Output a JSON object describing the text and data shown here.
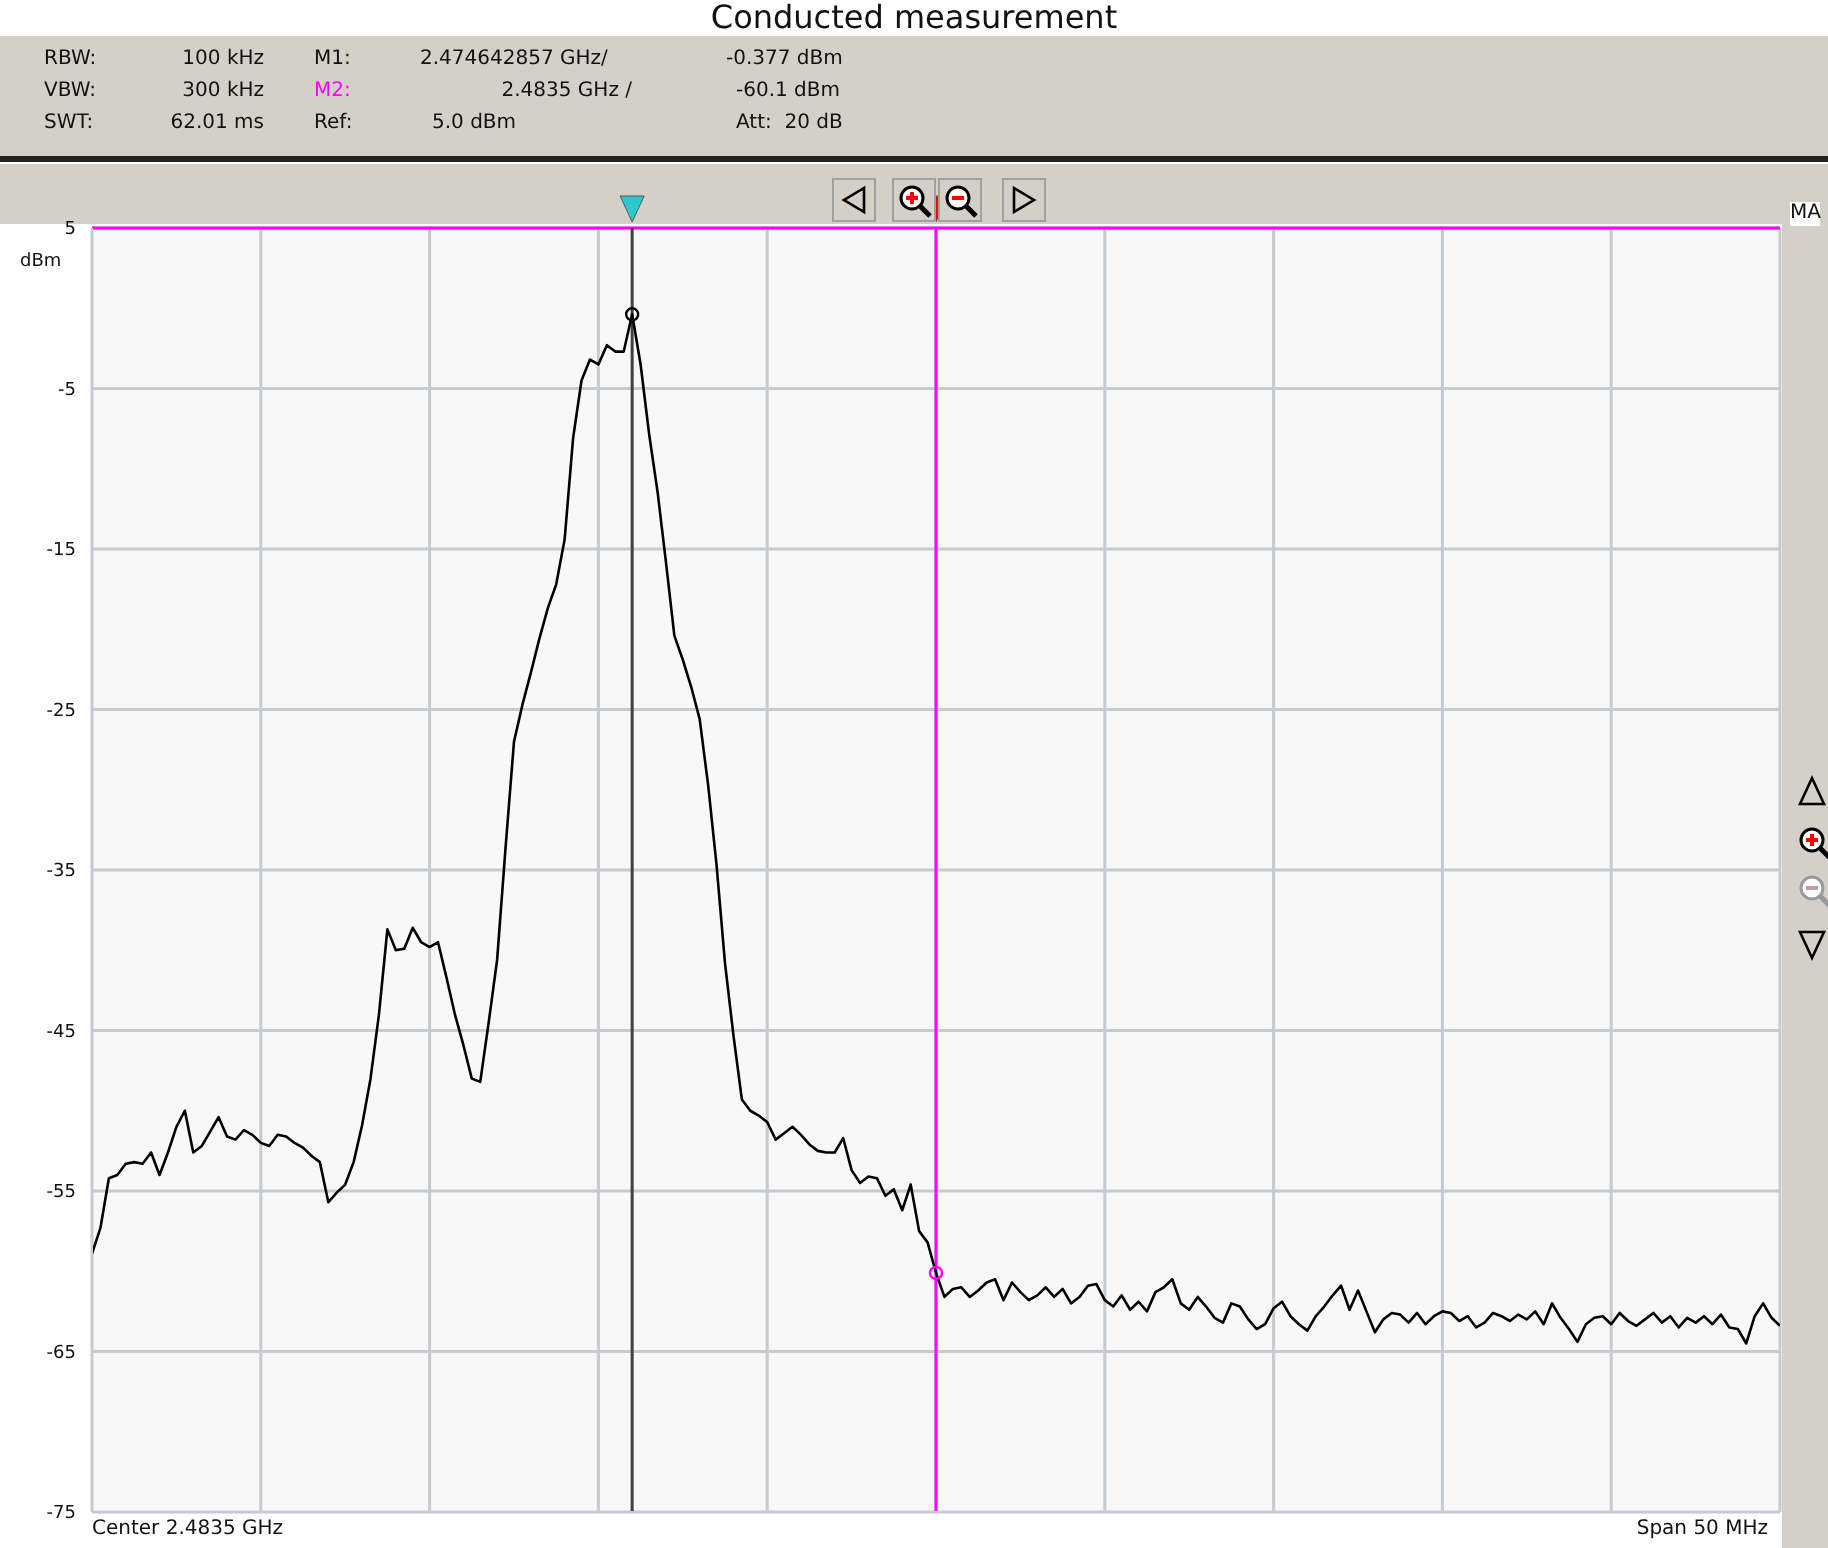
{
  "chart_data": {
    "type": "line",
    "title": "Conducted measurement",
    "ylabel": "dBm",
    "annotations": [
      "RBW:",
      "100 kHz",
      "M1:",
      "2.474642857 GHz/",
      "-0.377 dBm",
      "VBW:",
      "300 kHz",
      "M2:",
      "2.4835 GHz /",
      "-60.1 dBm",
      "SWT:",
      "62.01 ms",
      "Ref:",
      "5.0 dBm",
      "Att:  20 dB",
      "Center 2.4835 GHz",
      "Span 50 MHz",
      "MA"
    ],
    "categories": [
      null,
      null,
      null,
      null,
      null,
      null,
      null,
      null,
      null,
      null,
      null,
      null,
      null,
      null,
      null,
      null,
      null,
      null,
      null,
      null,
      null,
      null,
      null,
      null,
      null,
      null,
      null,
      null,
      null,
      null,
      null,
      null,
      null,
      null,
      null,
      null,
      null,
      null,
      null,
      null,
      null,
      null,
      null,
      null,
      null,
      null,
      null,
      null,
      null,
      null,
      null,
      null,
      null,
      null,
      null,
      null,
      null,
      null,
      null,
      null,
      null,
      null,
      null,
      null,
      null,
      null,
      null,
      null,
      null,
      null,
      null,
      null,
      null,
      null,
      null,
      null,
      null,
      null,
      null,
      null,
      null,
      null,
      null,
      null,
      null,
      null,
      null,
      null,
      null,
      null,
      null,
      null,
      null,
      null,
      null,
      null,
      null,
      null,
      null,
      null,
      null,
      null,
      null,
      null,
      null,
      null,
      null,
      null,
      null,
      null,
      null,
      null,
      null,
      null,
      null,
      null,
      null,
      null,
      null,
      null,
      null,
      null,
      null,
      null,
      null,
      null,
      null,
      null,
      null,
      null,
      null,
      null,
      null,
      null,
      null,
      null,
      null,
      null,
      null,
      null,
      null,
      null,
      null,
      null,
      null,
      null,
      null,
      null,
      null,
      null,
      null,
      null,
      null,
      null,
      null,
      null,
      null,
      null,
      null,
      null,
      null,
      null,
      null,
      null,
      null,
      null,
      null,
      null,
      null,
      null,
      null,
      null,
      null,
      null,
      null,
      null,
      null,
      null,
      null,
      null,
      null,
      null,
      null,
      null,
      null,
      null,
      null,
      null,
      null,
      null,
      null,
      null,
      null,
      null,
      null,
      null,
      null,
      null,
      null,
      null,
      null
    ],
    "series": [
      {
        "color": "#000000",
        "values": [
          -58.9,
          -57.3,
          -54.2,
          -54.0,
          -53.3,
          -53.2,
          -53.3,
          -52.6,
          -54.0,
          -52.6,
          -51.0,
          -50.0,
          -52.6,
          -52.2,
          -51.3,
          -50.4,
          -51.6,
          -51.8,
          -51.2,
          -51.5,
          -52.0,
          -52.2,
          -51.5,
          -51.6,
          -52.0,
          -52.3,
          -52.8,
          -53.2,
          -55.7,
          -55.1,
          -54.6,
          -53.2,
          -50.9,
          -48.0,
          -44.0,
          -38.7,
          -40.0,
          -39.9,
          -38.6,
          -39.5,
          -39.8,
          -39.5,
          -41.7,
          -44.0,
          -45.9,
          -48.0,
          -48.2,
          -44.5,
          -40.6,
          -33.6,
          -27.0,
          -24.7,
          -22.7,
          -20.6,
          -18.7,
          -17.2,
          -14.4,
          -8.1,
          -4.5,
          -3.2,
          -3.5,
          -2.3,
          -2.7,
          -2.7,
          -0.377,
          -3.5,
          -7.8,
          -11.4,
          -15.8,
          -20.4,
          -21.9,
          -23.6,
          -25.6,
          -29.7,
          -34.7,
          -40.8,
          -45.3,
          -49.3,
          -50.0,
          -50.3,
          -50.7,
          -51.8,
          -51.4,
          -51.0,
          -51.5,
          -52.1,
          -52.5,
          -52.6,
          -52.6,
          -51.7,
          -53.7,
          -54.5,
          -54.1,
          -54.2,
          -55.3,
          -54.9,
          -56.2,
          -54.6,
          -57.5,
          -58.2,
          -60.1,
          -61.6,
          -61.1,
          -61.0,
          -61.6,
          -61.2,
          -60.7,
          -60.5,
          -61.8,
          -60.7,
          -61.3,
          -61.8,
          -61.5,
          -61.0,
          -61.6,
          -61.1,
          -62.0,
          -61.6,
          -60.9,
          -60.8,
          -61.8,
          -62.2,
          -61.5,
          -62.4,
          -61.9,
          -62.5,
          -61.3,
          -61.0,
          -60.5,
          -62.0,
          -62.4,
          -61.6,
          -62.2,
          -62.9,
          -63.2,
          -62.0,
          -62.2,
          -63.0,
          -63.6,
          -63.3,
          -62.3,
          -61.9,
          -62.8,
          -63.3,
          -63.7,
          -62.8,
          -62.2,
          -61.5,
          -60.9,
          -62.4,
          -61.2,
          -62.5,
          -63.8,
          -63.0,
          -62.6,
          -62.7,
          -63.2,
          -62.6,
          -63.3,
          -62.8,
          -62.5,
          -62.6,
          -63.1,
          -62.8,
          -63.5,
          -63.2,
          -62.6,
          -62.8,
          -63.1,
          -62.7,
          -63.0,
          -62.5,
          -63.3,
          -62.0,
          -62.9,
          -63.6,
          -64.4,
          -63.3,
          -62.9,
          -62.8,
          -63.3,
          -62.6,
          -63.1,
          -63.4,
          -63.0,
          -62.6,
          -63.2,
          -62.8,
          -63.5,
          -62.9,
          -63.2,
          -62.8,
          -63.3,
          -62.7,
          -63.5,
          -63.6,
          -64.5,
          -62.8,
          -62.0,
          -62.9,
          -63.4
        ]
      },
      {
        "type": "scatter",
        "marker": "circle",
        "color": "#000000",
        "values": [
          null,
          null,
          null,
          null,
          null,
          null,
          null,
          null,
          null,
          null,
          null,
          null,
          null,
          null,
          null,
          null,
          null,
          null,
          null,
          null,
          null,
          null,
          null,
          null,
          null,
          null,
          null,
          null,
          null,
          null,
          null,
          null,
          null,
          null,
          null,
          null,
          null,
          null,
          null,
          null,
          null,
          null,
          null,
          null,
          null,
          null,
          null,
          null,
          null,
          null,
          null,
          null,
          null,
          null,
          null,
          null,
          null,
          null,
          null,
          null,
          null,
          null,
          null,
          null,
          -0.377,
          null,
          null,
          null,
          null,
          null,
          null,
          null,
          null,
          null,
          null,
          null,
          null,
          null,
          null,
          null,
          null,
          null,
          null,
          null,
          null,
          null,
          null,
          null,
          null,
          null,
          null,
          null,
          null,
          null,
          null,
          null,
          null,
          null,
          null,
          null,
          null,
          null,
          null,
          null,
          null,
          null,
          null,
          null,
          null,
          null,
          null,
          null,
          null,
          null,
          null,
          null,
          null,
          null,
          null,
          null,
          null,
          null,
          null,
          null,
          null,
          null,
          null,
          null,
          null,
          null,
          null,
          null,
          null,
          null,
          null,
          null,
          null,
          null,
          null,
          null,
          null,
          null,
          null,
          null,
          null,
          null,
          null,
          null,
          null,
          null,
          null,
          null,
          null,
          null,
          null,
          null,
          null,
          null,
          null,
          null,
          null,
          null,
          null,
          null,
          null,
          null,
          null,
          null,
          null,
          null,
          null,
          null,
          null,
          null,
          null,
          null,
          null,
          null,
          null,
          null,
          null,
          null,
          null,
          null,
          null,
          null,
          null,
          null,
          null,
          null,
          null,
          null,
          null,
          null,
          null,
          null,
          null,
          null,
          null,
          null,
          null
        ]
      },
      {
        "type": "scatter",
        "marker": "circle",
        "color": "#ff00ff",
        "values": [
          null,
          null,
          null,
          null,
          null,
          null,
          null,
          null,
          null,
          null,
          null,
          null,
          null,
          null,
          null,
          null,
          null,
          null,
          null,
          null,
          null,
          null,
          null,
          null,
          null,
          null,
          null,
          null,
          null,
          null,
          null,
          null,
          null,
          null,
          null,
          null,
          null,
          null,
          null,
          null,
          null,
          null,
          null,
          null,
          null,
          null,
          null,
          null,
          null,
          null,
          null,
          null,
          null,
          null,
          null,
          null,
          null,
          null,
          null,
          null,
          null,
          null,
          null,
          null,
          null,
          null,
          null,
          null,
          null,
          null,
          null,
          null,
          null,
          null,
          null,
          null,
          null,
          null,
          null,
          null,
          null,
          null,
          null,
          null,
          null,
          null,
          null,
          null,
          null,
          null,
          null,
          null,
          null,
          null,
          null,
          null,
          null,
          null,
          null,
          null,
          -60.1,
          null,
          null,
          null,
          null,
          null,
          null,
          null,
          null,
          null,
          null,
          null,
          null,
          null,
          null,
          null,
          null,
          null,
          null,
          null,
          null,
          null,
          null,
          null,
          null,
          null,
          null,
          null,
          null,
          null,
          null,
          null,
          null,
          null,
          null,
          null,
          null,
          null,
          null,
          null,
          null,
          null,
          null,
          null,
          null,
          null,
          null,
          null,
          null,
          null,
          null,
          null,
          null,
          null,
          null,
          null,
          null,
          null,
          null,
          null,
          null,
          null,
          null,
          null,
          null,
          null,
          null,
          null,
          null,
          null,
          null,
          null,
          null,
          null,
          null,
          null,
          null,
          null,
          null,
          null,
          null,
          null,
          null,
          null,
          null,
          null,
          null,
          null,
          null,
          null,
          null,
          null,
          null,
          null,
          null,
          null,
          null,
          null,
          null,
          null,
          null
        ]
      }
    ],
    "ylim": [
      -75,
      5
    ],
    "yticks": [
      5,
      -5,
      -15,
      -25,
      -35,
      -45,
      -55,
      -65,
      -75
    ],
    "tick_labels": "y",
    "grid": true,
    "marker": "none",
    "line_style": "solid",
    "ref_lines": [
      {
        "axis": "y",
        "value": 5,
        "color": "#ff00ff"
      }
    ]
  }
}
